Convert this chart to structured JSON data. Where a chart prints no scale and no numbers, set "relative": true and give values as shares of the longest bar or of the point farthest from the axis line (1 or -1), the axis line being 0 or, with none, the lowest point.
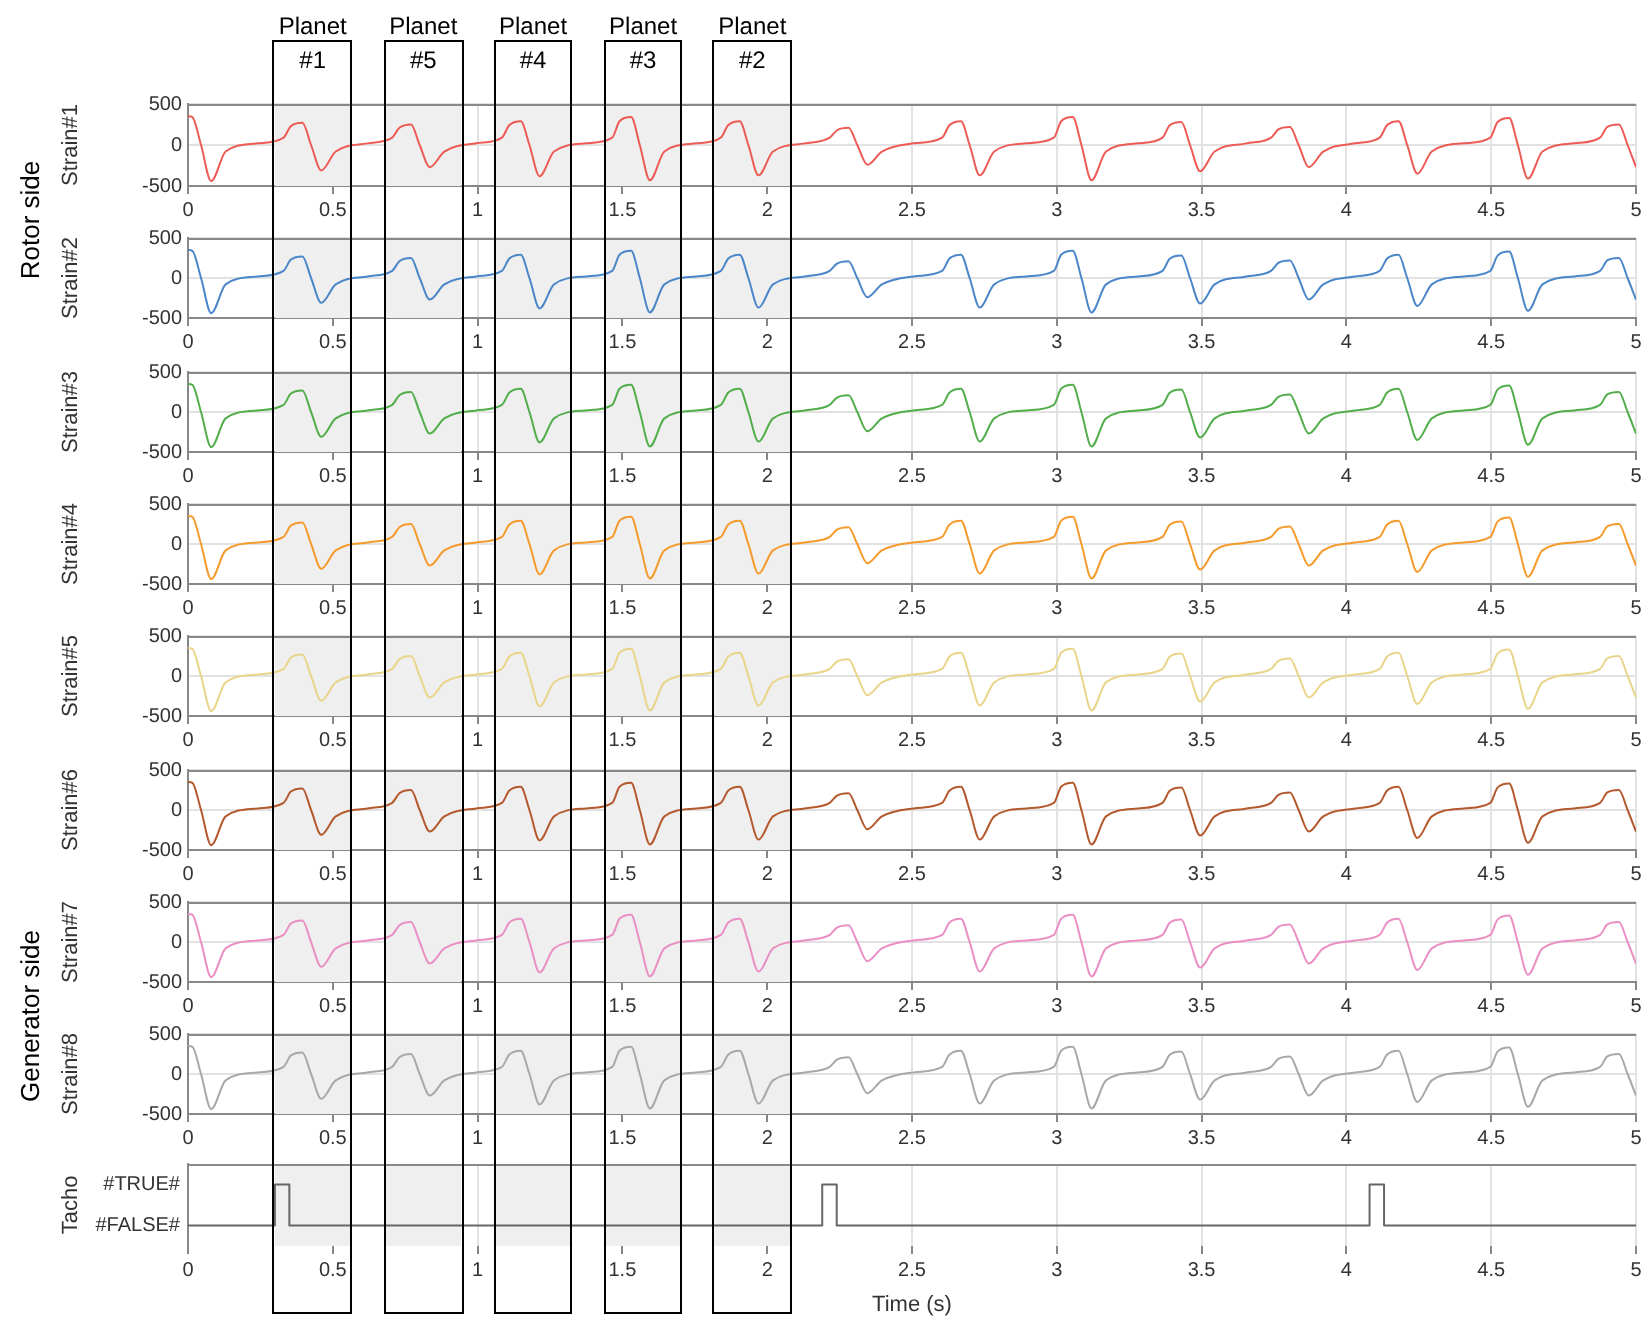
{
  "chart_data": [
    {
      "type": "line",
      "ylabel": "Strain#1",
      "annotations": [
        "Rotor side"
      ],
      "xlim": [
        0,
        5
      ],
      "ylim": [
        -500,
        500
      ],
      "xticks": [
        0,
        0.5,
        1,
        1.5,
        2,
        2.5,
        3,
        3.5,
        4,
        4.5,
        5
      ],
      "yticks": [
        -500,
        0,
        500
      ],
      "grid": true,
      "bands": [
        {
          "axis": "x",
          "from": 0.3,
          "to": 0.561,
          "label": "Planet\n#1"
        },
        {
          "axis": "x",
          "from": 0.682,
          "to": 0.943,
          "label": "Planet\n#5"
        },
        {
          "axis": "x",
          "from": 1.061,
          "to": 1.322,
          "label": "Planet\n#4"
        },
        {
          "axis": "x",
          "from": 1.441,
          "to": 1.702,
          "label": "Planet\n#3"
        },
        {
          "axis": "x",
          "from": 1.818,
          "to": 2.079,
          "label": "Planet\n#2"
        }
      ],
      "x": [
        0,
        0.015,
        0.045,
        0.08,
        0.13,
        0.24,
        0.33,
        0.355,
        0.395,
        0.425,
        0.46,
        0.51,
        0.62,
        0.705,
        0.73,
        0.77,
        0.8,
        0.835,
        0.885,
        0.995,
        1.084,
        1.109,
        1.149,
        1.179,
        1.214,
        1.264,
        1.374,
        1.465,
        1.49,
        1.53,
        1.56,
        1.595,
        1.645,
        1.755,
        1.84,
        1.865,
        1.905,
        1.935,
        1.97,
        2.02,
        2.13,
        2.216,
        2.241,
        2.281,
        2.311,
        2.346,
        2.396,
        2.506,
        2.604,
        2.629,
        2.669,
        2.699,
        2.734,
        2.784,
        2.894,
        2.99,
        3.015,
        3.055,
        3.085,
        3.12,
        3.17,
        3.28,
        3.365,
        3.39,
        3.43,
        3.46,
        3.495,
        3.545,
        3.655,
        3.74,
        3.765,
        3.805,
        3.835,
        3.87,
        3.92,
        4.03,
        4.115,
        4.14,
        4.18,
        4.21,
        4.245,
        4.295,
        4.405,
        4.497,
        4.522,
        4.562,
        4.592,
        4.627,
        4.677,
        4.787,
        4.876,
        4.901,
        4.941,
        4.971,
        5
      ],
      "series": [
        {
          "color": "#ec5b55",
          "values": [
            350,
            340,
            0,
            -440,
            -80,
            20,
            90,
            230,
            270,
            0,
            -310,
            -80,
            20,
            90,
            210,
            250,
            0,
            -270,
            -80,
            20,
            90,
            240,
            290,
            0,
            -380,
            -80,
            20,
            90,
            290,
            340,
            0,
            -430,
            -80,
            20,
            90,
            240,
            290,
            0,
            -370,
            -80,
            20,
            90,
            180,
            210,
            0,
            -240,
            -80,
            20,
            90,
            240,
            290,
            0,
            -370,
            -80,
            20,
            90,
            290,
            340,
            0,
            -430,
            -80,
            20,
            90,
            240,
            280,
            0,
            -320,
            -80,
            20,
            90,
            190,
            220,
            0,
            -270,
            -80,
            20,
            90,
            240,
            290,
            0,
            -350,
            -80,
            20,
            90,
            280,
            330,
            0,
            -410,
            -80,
            20,
            90,
            220,
            250,
            0,
            -270
          ]
        }
      ]
    },
    {
      "type": "line",
      "ylabel": "Strain#2",
      "xlim": [
        0,
        5
      ],
      "ylim": [
        -500,
        500
      ],
      "xticks": [
        0,
        0.5,
        1,
        1.5,
        2,
        2.5,
        3,
        3.5,
        4,
        4.5,
        5
      ],
      "yticks": [
        -500,
        0,
        500
      ],
      "grid": true,
      "bands": [
        {
          "axis": "x",
          "from": 0.3,
          "to": 0.561
        },
        {
          "axis": "x",
          "from": 0.682,
          "to": 0.943
        },
        {
          "axis": "x",
          "from": 1.061,
          "to": 1.322
        },
        {
          "axis": "x",
          "from": 1.441,
          "to": 1.702
        },
        {
          "axis": "x",
          "from": 1.818,
          "to": 2.079
        }
      ],
      "x": [
        0,
        0.015,
        0.045,
        0.08,
        0.13,
        0.24,
        0.33,
        0.355,
        0.395,
        0.425,
        0.46,
        0.51,
        0.62,
        0.705,
        0.73,
        0.77,
        0.8,
        0.835,
        0.885,
        0.995,
        1.084,
        1.109,
        1.149,
        1.179,
        1.214,
        1.264,
        1.374,
        1.465,
        1.49,
        1.53,
        1.56,
        1.595,
        1.645,
        1.755,
        1.84,
        1.865,
        1.905,
        1.935,
        1.97,
        2.02,
        2.13,
        2.216,
        2.241,
        2.281,
        2.311,
        2.346,
        2.396,
        2.506,
        2.604,
        2.629,
        2.669,
        2.699,
        2.734,
        2.784,
        2.894,
        2.99,
        3.015,
        3.055,
        3.085,
        3.12,
        3.17,
        3.28,
        3.365,
        3.39,
        3.43,
        3.46,
        3.495,
        3.545,
        3.655,
        3.74,
        3.765,
        3.805,
        3.835,
        3.87,
        3.92,
        4.03,
        4.115,
        4.14,
        4.18,
        4.21,
        4.245,
        4.295,
        4.405,
        4.497,
        4.522,
        4.562,
        4.592,
        4.627,
        4.677,
        4.787,
        4.876,
        4.901,
        4.941,
        4.971,
        5
      ],
      "series": [
        {
          "color": "#4a86c8",
          "values": [
            350,
            340,
            0,
            -440,
            -80,
            20,
            90,
            230,
            270,
            0,
            -310,
            -80,
            20,
            90,
            210,
            250,
            0,
            -270,
            -80,
            20,
            90,
            240,
            290,
            0,
            -380,
            -80,
            20,
            90,
            290,
            340,
            0,
            -430,
            -80,
            20,
            90,
            240,
            290,
            0,
            -370,
            -80,
            20,
            90,
            180,
            210,
            0,
            -240,
            -80,
            20,
            90,
            240,
            290,
            0,
            -370,
            -80,
            20,
            90,
            290,
            340,
            0,
            -430,
            -80,
            20,
            90,
            240,
            280,
            0,
            -320,
            -80,
            20,
            90,
            190,
            220,
            0,
            -270,
            -80,
            20,
            90,
            240,
            290,
            0,
            -350,
            -80,
            20,
            90,
            280,
            330,
            0,
            -410,
            -80,
            20,
            90,
            220,
            250,
            0,
            -270
          ]
        }
      ]
    },
    {
      "type": "line",
      "ylabel": "Strain#3",
      "xlim": [
        0,
        5
      ],
      "ylim": [
        -500,
        500
      ],
      "xticks": [
        0,
        0.5,
        1,
        1.5,
        2,
        2.5,
        3,
        3.5,
        4,
        4.5,
        5
      ],
      "yticks": [
        -500,
        0,
        500
      ],
      "grid": true,
      "bands": [
        {
          "axis": "x",
          "from": 0.3,
          "to": 0.561
        },
        {
          "axis": "x",
          "from": 0.682,
          "to": 0.943
        },
        {
          "axis": "x",
          "from": 1.061,
          "to": 1.322
        },
        {
          "axis": "x",
          "from": 1.441,
          "to": 1.702
        },
        {
          "axis": "x",
          "from": 1.818,
          "to": 2.079
        }
      ],
      "x": [
        0,
        0.015,
        0.045,
        0.08,
        0.13,
        0.24,
        0.33,
        0.355,
        0.395,
        0.425,
        0.46,
        0.51,
        0.62,
        0.705,
        0.73,
        0.77,
        0.8,
        0.835,
        0.885,
        0.995,
        1.084,
        1.109,
        1.149,
        1.179,
        1.214,
        1.264,
        1.374,
        1.465,
        1.49,
        1.53,
        1.56,
        1.595,
        1.645,
        1.755,
        1.84,
        1.865,
        1.905,
        1.935,
        1.97,
        2.02,
        2.13,
        2.216,
        2.241,
        2.281,
        2.311,
        2.346,
        2.396,
        2.506,
        2.604,
        2.629,
        2.669,
        2.699,
        2.734,
        2.784,
        2.894,
        2.99,
        3.015,
        3.055,
        3.085,
        3.12,
        3.17,
        3.28,
        3.365,
        3.39,
        3.43,
        3.46,
        3.495,
        3.545,
        3.655,
        3.74,
        3.765,
        3.805,
        3.835,
        3.87,
        3.92,
        4.03,
        4.115,
        4.14,
        4.18,
        4.21,
        4.245,
        4.295,
        4.405,
        4.497,
        4.522,
        4.562,
        4.592,
        4.627,
        4.677,
        4.787,
        4.876,
        4.901,
        4.941,
        4.971,
        5
      ],
      "series": [
        {
          "color": "#52ad4b",
          "values": [
            350,
            340,
            0,
            -440,
            -80,
            20,
            90,
            230,
            270,
            0,
            -310,
            -80,
            20,
            90,
            210,
            250,
            0,
            -270,
            -80,
            20,
            90,
            240,
            290,
            0,
            -380,
            -80,
            20,
            90,
            290,
            340,
            0,
            -430,
            -80,
            20,
            90,
            240,
            290,
            0,
            -370,
            -80,
            20,
            90,
            180,
            210,
            0,
            -240,
            -80,
            20,
            90,
            240,
            290,
            0,
            -370,
            -80,
            20,
            90,
            290,
            340,
            0,
            -430,
            -80,
            20,
            90,
            240,
            280,
            0,
            -320,
            -80,
            20,
            90,
            190,
            220,
            0,
            -270,
            -80,
            20,
            90,
            240,
            290,
            0,
            -350,
            -80,
            20,
            90,
            280,
            330,
            0,
            -410,
            -80,
            20,
            90,
            220,
            250,
            0,
            -270
          ]
        }
      ]
    },
    {
      "type": "line",
      "ylabel": "Strain#4",
      "xlim": [
        0,
        5
      ],
      "ylim": [
        -500,
        500
      ],
      "xticks": [
        0,
        0.5,
        1,
        1.5,
        2,
        2.5,
        3,
        3.5,
        4,
        4.5,
        5
      ],
      "yticks": [
        -500,
        0,
        500
      ],
      "grid": true,
      "bands": [
        {
          "axis": "x",
          "from": 0.3,
          "to": 0.561
        },
        {
          "axis": "x",
          "from": 0.682,
          "to": 0.943
        },
        {
          "axis": "x",
          "from": 1.061,
          "to": 1.322
        },
        {
          "axis": "x",
          "from": 1.441,
          "to": 1.702
        },
        {
          "axis": "x",
          "from": 1.818,
          "to": 2.079
        }
      ],
      "x": [
        0,
        0.015,
        0.045,
        0.08,
        0.13,
        0.24,
        0.33,
        0.355,
        0.395,
        0.425,
        0.46,
        0.51,
        0.62,
        0.705,
        0.73,
        0.77,
        0.8,
        0.835,
        0.885,
        0.995,
        1.084,
        1.109,
        1.149,
        1.179,
        1.214,
        1.264,
        1.374,
        1.465,
        1.49,
        1.53,
        1.56,
        1.595,
        1.645,
        1.755,
        1.84,
        1.865,
        1.905,
        1.935,
        1.97,
        2.02,
        2.13,
        2.216,
        2.241,
        2.281,
        2.311,
        2.346,
        2.396,
        2.506,
        2.604,
        2.629,
        2.669,
        2.699,
        2.734,
        2.784,
        2.894,
        2.99,
        3.015,
        3.055,
        3.085,
        3.12,
        3.17,
        3.28,
        3.365,
        3.39,
        3.43,
        3.46,
        3.495,
        3.545,
        3.655,
        3.74,
        3.765,
        3.805,
        3.835,
        3.87,
        3.92,
        4.03,
        4.115,
        4.14,
        4.18,
        4.21,
        4.245,
        4.295,
        4.405,
        4.497,
        4.522,
        4.562,
        4.592,
        4.627,
        4.677,
        4.787,
        4.876,
        4.901,
        4.941,
        4.971,
        5
      ],
      "series": [
        {
          "color": "#f59a2c",
          "values": [
            350,
            340,
            0,
            -440,
            -80,
            20,
            90,
            230,
            270,
            0,
            -310,
            -80,
            20,
            90,
            210,
            250,
            0,
            -270,
            -80,
            20,
            90,
            240,
            290,
            0,
            -380,
            -80,
            20,
            90,
            290,
            340,
            0,
            -430,
            -80,
            20,
            90,
            240,
            290,
            0,
            -370,
            -80,
            20,
            90,
            180,
            210,
            0,
            -240,
            -80,
            20,
            90,
            240,
            290,
            0,
            -370,
            -80,
            20,
            90,
            290,
            340,
            0,
            -430,
            -80,
            20,
            90,
            240,
            280,
            0,
            -320,
            -80,
            20,
            90,
            190,
            220,
            0,
            -270,
            -80,
            20,
            90,
            240,
            290,
            0,
            -350,
            -80,
            20,
            90,
            280,
            330,
            0,
            -410,
            -80,
            20,
            90,
            220,
            250,
            0,
            -270
          ]
        }
      ]
    },
    {
      "type": "line",
      "ylabel": "Strain#5",
      "xlim": [
        0,
        5
      ],
      "ylim": [
        -500,
        500
      ],
      "xticks": [
        0,
        0.5,
        1,
        1.5,
        2,
        2.5,
        3,
        3.5,
        4,
        4.5,
        5
      ],
      "yticks": [
        -500,
        0,
        500
      ],
      "grid": true,
      "bands": [
        {
          "axis": "x",
          "from": 0.3,
          "to": 0.561
        },
        {
          "axis": "x",
          "from": 0.682,
          "to": 0.943
        },
        {
          "axis": "x",
          "from": 1.061,
          "to": 1.322
        },
        {
          "axis": "x",
          "from": 1.441,
          "to": 1.702
        },
        {
          "axis": "x",
          "from": 1.818,
          "to": 2.079
        }
      ],
      "x": [
        0,
        0.015,
        0.045,
        0.08,
        0.13,
        0.24,
        0.33,
        0.355,
        0.395,
        0.425,
        0.46,
        0.51,
        0.62,
        0.705,
        0.73,
        0.77,
        0.8,
        0.835,
        0.885,
        0.995,
        1.084,
        1.109,
        1.149,
        1.179,
        1.214,
        1.264,
        1.374,
        1.465,
        1.49,
        1.53,
        1.56,
        1.595,
        1.645,
        1.755,
        1.84,
        1.865,
        1.905,
        1.935,
        1.97,
        2.02,
        2.13,
        2.216,
        2.241,
        2.281,
        2.311,
        2.346,
        2.396,
        2.506,
        2.604,
        2.629,
        2.669,
        2.699,
        2.734,
        2.784,
        2.894,
        2.99,
        3.015,
        3.055,
        3.085,
        3.12,
        3.17,
        3.28,
        3.365,
        3.39,
        3.43,
        3.46,
        3.495,
        3.545,
        3.655,
        3.74,
        3.765,
        3.805,
        3.835,
        3.87,
        3.92,
        4.03,
        4.115,
        4.14,
        4.18,
        4.21,
        4.245,
        4.295,
        4.405,
        4.497,
        4.522,
        4.562,
        4.592,
        4.627,
        4.677,
        4.787,
        4.876,
        4.901,
        4.941,
        4.971,
        5
      ],
      "series": [
        {
          "color": "#e9d58a",
          "values": [
            350,
            340,
            0,
            -440,
            -80,
            20,
            90,
            230,
            270,
            0,
            -310,
            -80,
            20,
            90,
            210,
            250,
            0,
            -270,
            -80,
            20,
            90,
            240,
            290,
            0,
            -380,
            -80,
            20,
            90,
            290,
            340,
            0,
            -430,
            -80,
            20,
            90,
            240,
            290,
            0,
            -370,
            -80,
            20,
            90,
            180,
            210,
            0,
            -240,
            -80,
            20,
            90,
            240,
            290,
            0,
            -370,
            -80,
            20,
            90,
            290,
            340,
            0,
            -430,
            -80,
            20,
            90,
            240,
            280,
            0,
            -320,
            -80,
            20,
            90,
            190,
            220,
            0,
            -270,
            -80,
            20,
            90,
            240,
            290,
            0,
            -350,
            -80,
            20,
            90,
            280,
            330,
            0,
            -410,
            -80,
            20,
            90,
            220,
            250,
            0,
            -270
          ]
        }
      ]
    },
    {
      "type": "line",
      "ylabel": "Strain#6",
      "xlim": [
        0,
        5
      ],
      "ylim": [
        -500,
        500
      ],
      "xticks": [
        0,
        0.5,
        1,
        1.5,
        2,
        2.5,
        3,
        3.5,
        4,
        4.5,
        5
      ],
      "yticks": [
        -500,
        0,
        500
      ],
      "grid": true,
      "bands": [
        {
          "axis": "x",
          "from": 0.3,
          "to": 0.561
        },
        {
          "axis": "x",
          "from": 0.682,
          "to": 0.943
        },
        {
          "axis": "x",
          "from": 1.061,
          "to": 1.322
        },
        {
          "axis": "x",
          "from": 1.441,
          "to": 1.702
        },
        {
          "axis": "x",
          "from": 1.818,
          "to": 2.079
        }
      ],
      "x": [
        0,
        0.015,
        0.045,
        0.08,
        0.13,
        0.24,
        0.33,
        0.355,
        0.395,
        0.425,
        0.46,
        0.51,
        0.62,
        0.705,
        0.73,
        0.77,
        0.8,
        0.835,
        0.885,
        0.995,
        1.084,
        1.109,
        1.149,
        1.179,
        1.214,
        1.264,
        1.374,
        1.465,
        1.49,
        1.53,
        1.56,
        1.595,
        1.645,
        1.755,
        1.84,
        1.865,
        1.905,
        1.935,
        1.97,
        2.02,
        2.13,
        2.216,
        2.241,
        2.281,
        2.311,
        2.346,
        2.396,
        2.506,
        2.604,
        2.629,
        2.669,
        2.699,
        2.734,
        2.784,
        2.894,
        2.99,
        3.015,
        3.055,
        3.085,
        3.12,
        3.17,
        3.28,
        3.365,
        3.39,
        3.43,
        3.46,
        3.495,
        3.545,
        3.655,
        3.74,
        3.765,
        3.805,
        3.835,
        3.87,
        3.92,
        4.03,
        4.115,
        4.14,
        4.18,
        4.21,
        4.245,
        4.295,
        4.405,
        4.497,
        4.522,
        4.562,
        4.592,
        4.627,
        4.677,
        4.787,
        4.876,
        4.901,
        4.941,
        4.971,
        5
      ],
      "series": [
        {
          "color": "#b4582e",
          "values": [
            350,
            340,
            0,
            -440,
            -80,
            20,
            90,
            230,
            270,
            0,
            -310,
            -80,
            20,
            90,
            210,
            250,
            0,
            -270,
            -80,
            20,
            90,
            240,
            290,
            0,
            -380,
            -80,
            20,
            90,
            290,
            340,
            0,
            -430,
            -80,
            20,
            90,
            240,
            290,
            0,
            -370,
            -80,
            20,
            90,
            180,
            210,
            0,
            -240,
            -80,
            20,
            90,
            240,
            290,
            0,
            -370,
            -80,
            20,
            90,
            290,
            340,
            0,
            -430,
            -80,
            20,
            90,
            240,
            280,
            0,
            -320,
            -80,
            20,
            90,
            190,
            220,
            0,
            -270,
            -80,
            20,
            90,
            240,
            290,
            0,
            -350,
            -80,
            20,
            90,
            280,
            330,
            0,
            -410,
            -80,
            20,
            90,
            220,
            250,
            0,
            -270
          ]
        }
      ]
    },
    {
      "type": "line",
      "ylabel": "Strain#7",
      "annotations": [
        "Generator side"
      ],
      "xlim": [
        0,
        5
      ],
      "ylim": [
        -500,
        500
      ],
      "xticks": [
        0,
        0.5,
        1,
        1.5,
        2,
        2.5,
        3,
        3.5,
        4,
        4.5,
        5
      ],
      "yticks": [
        -500,
        0,
        500
      ],
      "grid": true,
      "bands": [
        {
          "axis": "x",
          "from": 0.3,
          "to": 0.561
        },
        {
          "axis": "x",
          "from": 0.682,
          "to": 0.943
        },
        {
          "axis": "x",
          "from": 1.061,
          "to": 1.322
        },
        {
          "axis": "x",
          "from": 1.441,
          "to": 1.702
        },
        {
          "axis": "x",
          "from": 1.818,
          "to": 2.079
        }
      ],
      "x": [
        0,
        0.015,
        0.045,
        0.08,
        0.13,
        0.24,
        0.33,
        0.355,
        0.395,
        0.425,
        0.46,
        0.51,
        0.62,
        0.705,
        0.73,
        0.77,
        0.8,
        0.835,
        0.885,
        0.995,
        1.084,
        1.109,
        1.149,
        1.179,
        1.214,
        1.264,
        1.374,
        1.465,
        1.49,
        1.53,
        1.56,
        1.595,
        1.645,
        1.755,
        1.84,
        1.865,
        1.905,
        1.935,
        1.97,
        2.02,
        2.13,
        2.216,
        2.241,
        2.281,
        2.311,
        2.346,
        2.396,
        2.506,
        2.604,
        2.629,
        2.669,
        2.699,
        2.734,
        2.784,
        2.894,
        2.99,
        3.015,
        3.055,
        3.085,
        3.12,
        3.17,
        3.28,
        3.365,
        3.39,
        3.43,
        3.46,
        3.495,
        3.545,
        3.655,
        3.74,
        3.765,
        3.805,
        3.835,
        3.87,
        3.92,
        4.03,
        4.115,
        4.14,
        4.18,
        4.21,
        4.245,
        4.295,
        4.405,
        4.497,
        4.522,
        4.562,
        4.592,
        4.627,
        4.677,
        4.787,
        4.876,
        4.901,
        4.941,
        4.971,
        5
      ],
      "series": [
        {
          "color": "#ea8fc4",
          "values": [
            350,
            340,
            0,
            -440,
            -80,
            20,
            90,
            230,
            270,
            0,
            -310,
            -80,
            20,
            90,
            210,
            250,
            0,
            -270,
            -80,
            20,
            90,
            240,
            290,
            0,
            -380,
            -80,
            20,
            90,
            290,
            340,
            0,
            -430,
            -80,
            20,
            90,
            240,
            290,
            0,
            -370,
            -80,
            20,
            90,
            180,
            210,
            0,
            -240,
            -80,
            20,
            90,
            240,
            290,
            0,
            -370,
            -80,
            20,
            90,
            290,
            340,
            0,
            -430,
            -80,
            20,
            90,
            240,
            280,
            0,
            -320,
            -80,
            20,
            90,
            190,
            220,
            0,
            -270,
            -80,
            20,
            90,
            240,
            290,
            0,
            -350,
            -80,
            20,
            90,
            280,
            330,
            0,
            -410,
            -80,
            20,
            90,
            220,
            250,
            0,
            -270
          ]
        }
      ]
    },
    {
      "type": "line",
      "ylabel": "Strain#8",
      "xlim": [
        0,
        5
      ],
      "ylim": [
        -500,
        500
      ],
      "xticks": [
        0,
        0.5,
        1,
        1.5,
        2,
        2.5,
        3,
        3.5,
        4,
        4.5,
        5
      ],
      "yticks": [
        -500,
        0,
        500
      ],
      "grid": true,
      "bands": [
        {
          "axis": "x",
          "from": 0.3,
          "to": 0.561
        },
        {
          "axis": "x",
          "from": 0.682,
          "to": 0.943
        },
        {
          "axis": "x",
          "from": 1.061,
          "to": 1.322
        },
        {
          "axis": "x",
          "from": 1.441,
          "to": 1.702
        },
        {
          "axis": "x",
          "from": 1.818,
          "to": 2.079
        }
      ],
      "x": [
        0,
        0.015,
        0.045,
        0.08,
        0.13,
        0.24,
        0.33,
        0.355,
        0.395,
        0.425,
        0.46,
        0.51,
        0.62,
        0.705,
        0.73,
        0.77,
        0.8,
        0.835,
        0.885,
        0.995,
        1.084,
        1.109,
        1.149,
        1.179,
        1.214,
        1.264,
        1.374,
        1.465,
        1.49,
        1.53,
        1.56,
        1.595,
        1.645,
        1.755,
        1.84,
        1.865,
        1.905,
        1.935,
        1.97,
        2.02,
        2.13,
        2.216,
        2.241,
        2.281,
        2.311,
        2.346,
        2.396,
        2.506,
        2.604,
        2.629,
        2.669,
        2.699,
        2.734,
        2.784,
        2.894,
        2.99,
        3.015,
        3.055,
        3.085,
        3.12,
        3.17,
        3.28,
        3.365,
        3.39,
        3.43,
        3.46,
        3.495,
        3.545,
        3.655,
        3.74,
        3.765,
        3.805,
        3.835,
        3.87,
        3.92,
        4.03,
        4.115,
        4.14,
        4.18,
        4.21,
        4.245,
        4.295,
        4.405,
        4.497,
        4.522,
        4.562,
        4.592,
        4.627,
        4.677,
        4.787,
        4.876,
        4.901,
        4.941,
        4.971,
        5
      ],
      "series": [
        {
          "color": "#a8a8a8",
          "values": [
            350,
            340,
            0,
            -440,
            -80,
            20,
            90,
            230,
            270,
            0,
            -310,
            -80,
            20,
            90,
            210,
            250,
            0,
            -270,
            -80,
            20,
            90,
            240,
            290,
            0,
            -380,
            -80,
            20,
            90,
            290,
            340,
            0,
            -430,
            -80,
            20,
            90,
            240,
            290,
            0,
            -370,
            -80,
            20,
            90,
            180,
            210,
            0,
            -240,
            -80,
            20,
            90,
            240,
            290,
            0,
            -370,
            -80,
            20,
            90,
            290,
            340,
            0,
            -430,
            -80,
            20,
            90,
            240,
            280,
            0,
            -320,
            -80,
            20,
            90,
            190,
            220,
            0,
            -270,
            -80,
            20,
            90,
            240,
            290,
            0,
            -350,
            -80,
            20,
            90,
            280,
            330,
            0,
            -410,
            -80,
            20,
            90,
            220,
            250,
            0,
            -270
          ]
        }
      ]
    },
    {
      "type": "line",
      "ylabel": "Tacho",
      "xlabel": "Time (s)",
      "relative": true,
      "annotations": [
        "#TRUE#",
        "#FALSE#"
      ],
      "xlim": [
        0,
        5
      ],
      "xticks": [
        0,
        0.5,
        1,
        1.5,
        2,
        2.5,
        3,
        3.5,
        4,
        4.5,
        5
      ],
      "grid": "x",
      "bands": [
        {
          "axis": "x",
          "from": 0.3,
          "to": 0.561
        },
        {
          "axis": "x",
          "from": 0.682,
          "to": 0.943
        },
        {
          "axis": "x",
          "from": 1.061,
          "to": 1.322
        },
        {
          "axis": "x",
          "from": 1.441,
          "to": 1.702
        },
        {
          "axis": "x",
          "from": 1.818,
          "to": 2.079
        }
      ],
      "x": [
        0,
        0.3,
        0.3,
        0.35,
        0.35,
        2.19,
        2.19,
        2.24,
        2.24,
        4.08,
        4.08,
        4.13,
        4.13,
        5
      ],
      "series": [
        {
          "color": "#666666",
          "values": [
            0,
            0,
            1,
            1,
            0,
            0,
            1,
            1,
            0,
            0,
            1,
            1,
            0,
            0
          ]
        }
      ]
    }
  ]
}
